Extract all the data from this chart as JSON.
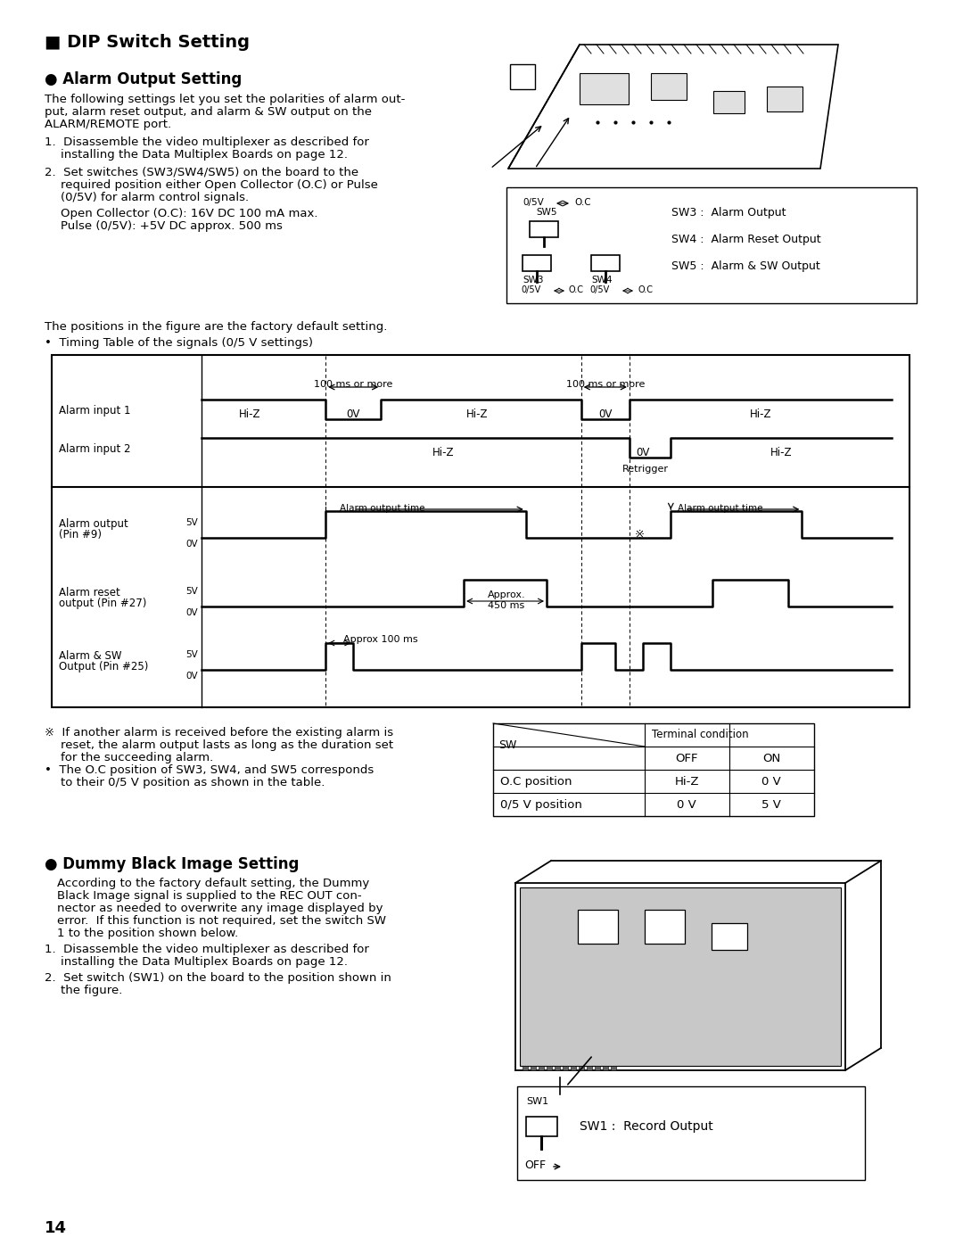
{
  "page_bg": "#ffffff",
  "page_number": "14",
  "title": "■ DIP Switch Setting",
  "section1_title": "● Alarm Output Setting",
  "section2_title": "● Dummy Black Image Setting",
  "table_rows": [
    [
      "O.C position",
      "Hi-Z",
      "0 V"
    ],
    [
      "0/5 V position",
      "0 V",
      "5 V"
    ]
  ]
}
